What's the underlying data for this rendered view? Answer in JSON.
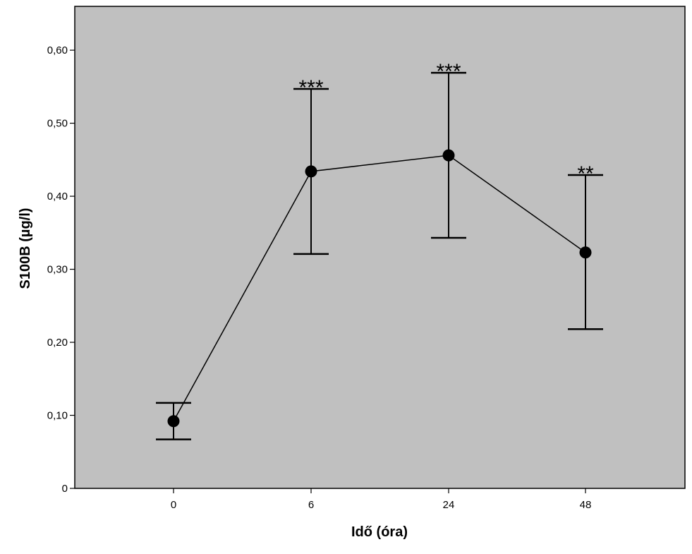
{
  "chart_data": {
    "type": "line",
    "title": "",
    "xlabel": "Idő (óra)",
    "ylabel": "S100B (µg/l)",
    "categories": [
      "0",
      "6",
      "24",
      "48"
    ],
    "series": [
      {
        "values": [
          0.092,
          0.434,
          0.456,
          0.323
        ],
        "error_upper": [
          0.117,
          0.547,
          0.569,
          0.429
        ],
        "error_lower": [
          0.067,
          0.321,
          0.343,
          0.218
        ],
        "significance": [
          "",
          "***",
          "***",
          "**"
        ]
      }
    ],
    "ylim": [
      0,
      0.66
    ],
    "yticks": [
      0,
      0.1,
      0.2,
      0.3,
      0.4,
      0.5,
      0.6
    ],
    "ytick_labels": [
      "0",
      "0,10",
      "0,20",
      "0,30",
      "0,40",
      "0,50",
      "0,60"
    ],
    "grid": false,
    "plot_background": "#c0c0c0",
    "line_color": "#000000",
    "marker_color": "#000000"
  }
}
